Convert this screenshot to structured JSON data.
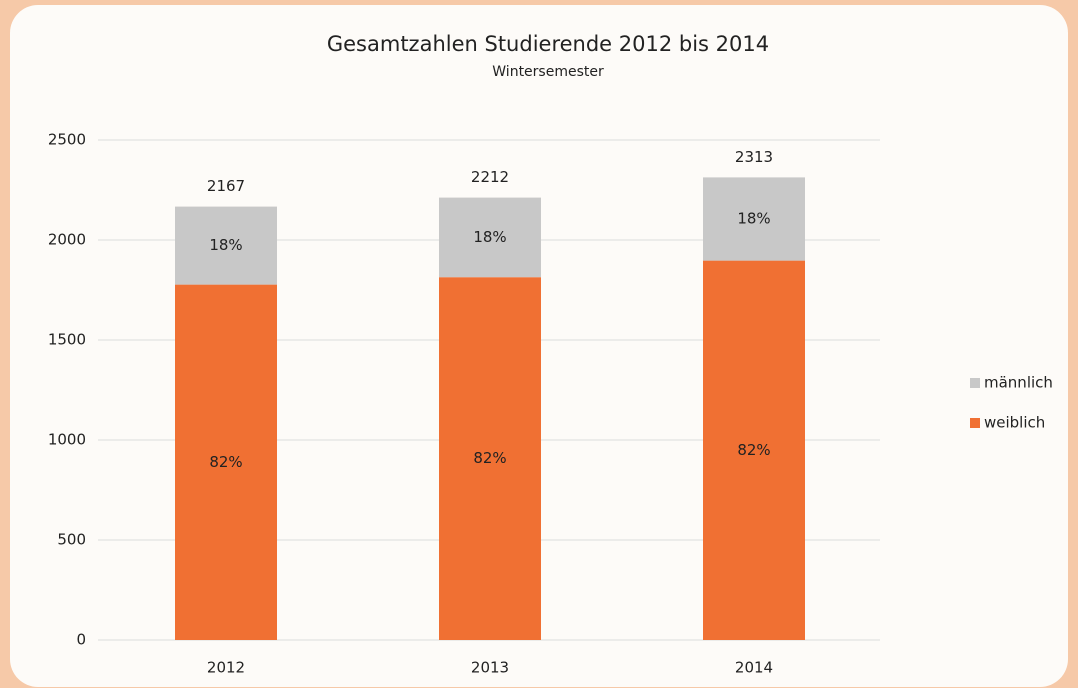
{
  "chart_data": {
    "type": "stacked_bar",
    "title": "Gesamtzahlen Studierende 2012 bis 2014",
    "subtitle": "Wintersemester",
    "categories": [
      "2012",
      "2013",
      "2014"
    ],
    "series": [
      {
        "name": "weiblich",
        "color": "#f07033",
        "values": [
          1777,
          1814,
          1897
        ],
        "shares": [
          82,
          82,
          82
        ],
        "share_labels": [
          "82%",
          "82%",
          "82%"
        ]
      },
      {
        "name": "männlich",
        "color": "#c8c8c8",
        "values": [
          390,
          398,
          416
        ],
        "shares": [
          18,
          18,
          18
        ],
        "share_labels": [
          "18%",
          "18%",
          "18%"
        ]
      }
    ],
    "totals": [
      2167,
      2212,
      2313
    ],
    "ylim": [
      0,
      2500
    ],
    "yticks": [
      0,
      500,
      1000,
      1500,
      2000,
      2500
    ],
    "grid": true,
    "legend": "right"
  }
}
